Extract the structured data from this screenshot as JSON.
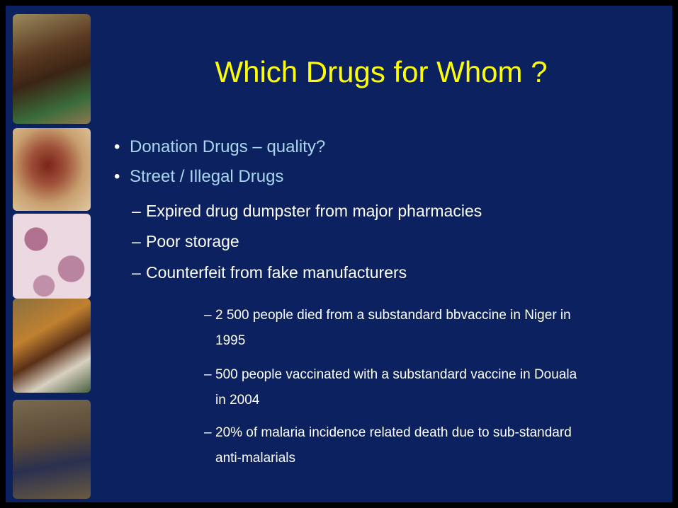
{
  "title": "Which Drugs for Whom ?",
  "bullets": [
    {
      "text": "Donation Drugs – quality?"
    },
    {
      "text": "Street / Illegal Drugs",
      "items": [
        {
          "text": "Expired drug dumpster  from major pharmacies"
        },
        {
          "text": "Poor storage"
        },
        {
          "text": "Counterfeit from fake manufacturers",
          "items": [
            {
              "text": "2 500 people died from a substandard bbvaccine in Niger in 1995"
            },
            {
              "text": "500 people vaccinated with a substandard vaccine in Douala in 2004"
            },
            {
              "text": "20%  of malaria incidence related death due to sub-standard anti-malarials"
            }
          ]
        }
      ]
    }
  ]
}
